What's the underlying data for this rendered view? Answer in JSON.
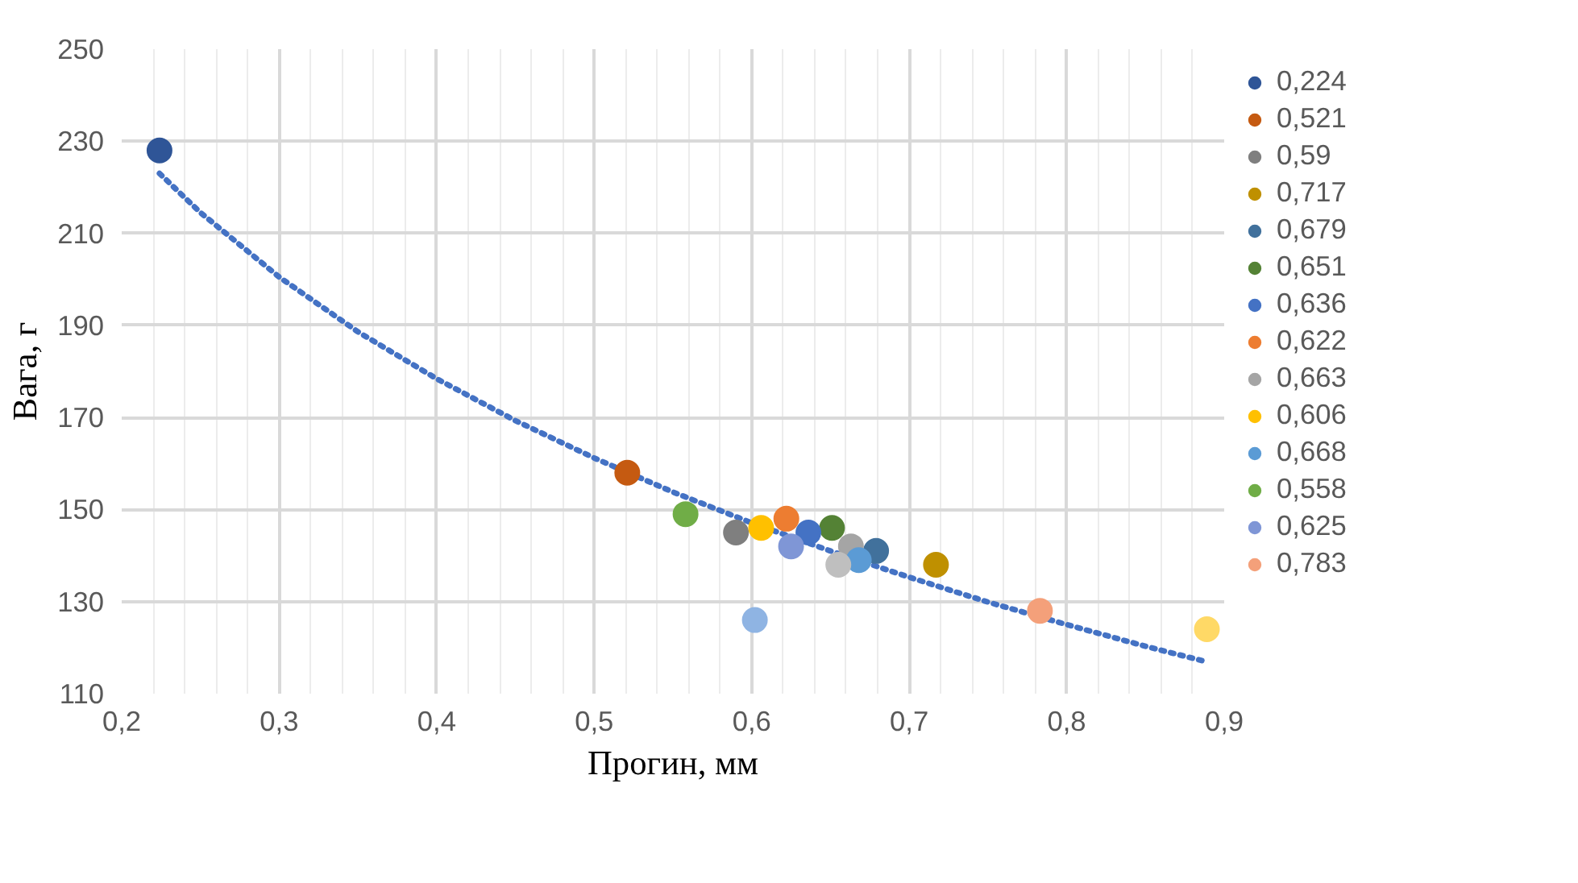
{
  "chart_data": {
    "type": "scatter",
    "xlabel": "Прогин, мм",
    "ylabel": "Вага, г",
    "xlim": [
      0.2,
      0.9
    ],
    "ylim": [
      110,
      250
    ],
    "xticks": [
      {
        "value": 0.2,
        "label": "0,2"
      },
      {
        "value": 0.3,
        "label": "0,3"
      },
      {
        "value": 0.4,
        "label": "0,4"
      },
      {
        "value": 0.5,
        "label": "0,5"
      },
      {
        "value": 0.6,
        "label": "0,6"
      },
      {
        "value": 0.7,
        "label": "0,7"
      },
      {
        "value": 0.8,
        "label": "0,8"
      },
      {
        "value": 0.9,
        "label": "0,9"
      }
    ],
    "yticks": [
      110,
      130,
      150,
      170,
      190,
      210,
      230,
      250
    ],
    "grid": true,
    "legend": "right",
    "marker": "circle",
    "series": [
      {
        "name": "0,224",
        "color": "#2f5597",
        "x": [
          0.224
        ],
        "values": [
          228
        ]
      },
      {
        "name": "0,521",
        "color": "#c55a11",
        "x": [
          0.521
        ],
        "values": [
          158
        ]
      },
      {
        "name": "0,59",
        "color": "#7f7f7f",
        "x": [
          0.59
        ],
        "values": [
          145
        ]
      },
      {
        "name": "0,717",
        "color": "#bf9000",
        "x": [
          0.717
        ],
        "values": [
          138
        ]
      },
      {
        "name": "0,679",
        "color": "#41719c",
        "x": [
          0.679
        ],
        "values": [
          141
        ]
      },
      {
        "name": "0,651",
        "color": "#548235",
        "x": [
          0.651
        ],
        "values": [
          146
        ]
      },
      {
        "name": "0,636",
        "color": "#4472c4",
        "x": [
          0.636
        ],
        "values": [
          145
        ]
      },
      {
        "name": "0,622",
        "color": "#ed7d31",
        "x": [
          0.622
        ],
        "values": [
          148
        ]
      },
      {
        "name": "0,663",
        "color": "#a5a5a5",
        "x": [
          0.663
        ],
        "values": [
          142
        ]
      },
      {
        "name": "0,606",
        "color": "#ffc000",
        "x": [
          0.606
        ],
        "values": [
          146
        ]
      },
      {
        "name": "0,668",
        "color": "#5b9bd5",
        "x": [
          0.668
        ],
        "values": [
          139
        ]
      },
      {
        "name": "0,558",
        "color": "#70ad47",
        "x": [
          0.558
        ],
        "values": [
          149
        ]
      },
      {
        "name": "0,625",
        "color": "#7f96d6",
        "x": [
          0.625
        ],
        "values": [
          142
        ]
      },
      {
        "name": "0,783",
        "color": "#f4a07a",
        "x": [
          0.783
        ],
        "values": [
          128
        ]
      },
      {
        "color": "#bfbfbf",
        "x": [
          0.655
        ],
        "values": [
          138
        ]
      },
      {
        "color": "#8fb4e3",
        "x": [
          0.602
        ],
        "values": [
          126
        ]
      },
      {
        "color": "#ffd966",
        "x": [
          0.889
        ],
        "values": [
          124
        ]
      },
      {
        "type": "line",
        "line_style": "dotted",
        "marker": "none",
        "color": "#4472c4",
        "x": [
          0.224,
          0.25,
          0.3,
          0.35,
          0.4,
          0.45,
          0.5,
          0.55,
          0.6,
          0.65,
          0.7,
          0.75,
          0.8,
          0.85,
          0.888
        ],
        "values": [
          223,
          214.5,
          200.5,
          188.6,
          178.4,
          169.3,
          161.2,
          153.8,
          147.1,
          141,
          135.3,
          129.9,
          125,
          120.3,
          117
        ]
      }
    ]
  }
}
